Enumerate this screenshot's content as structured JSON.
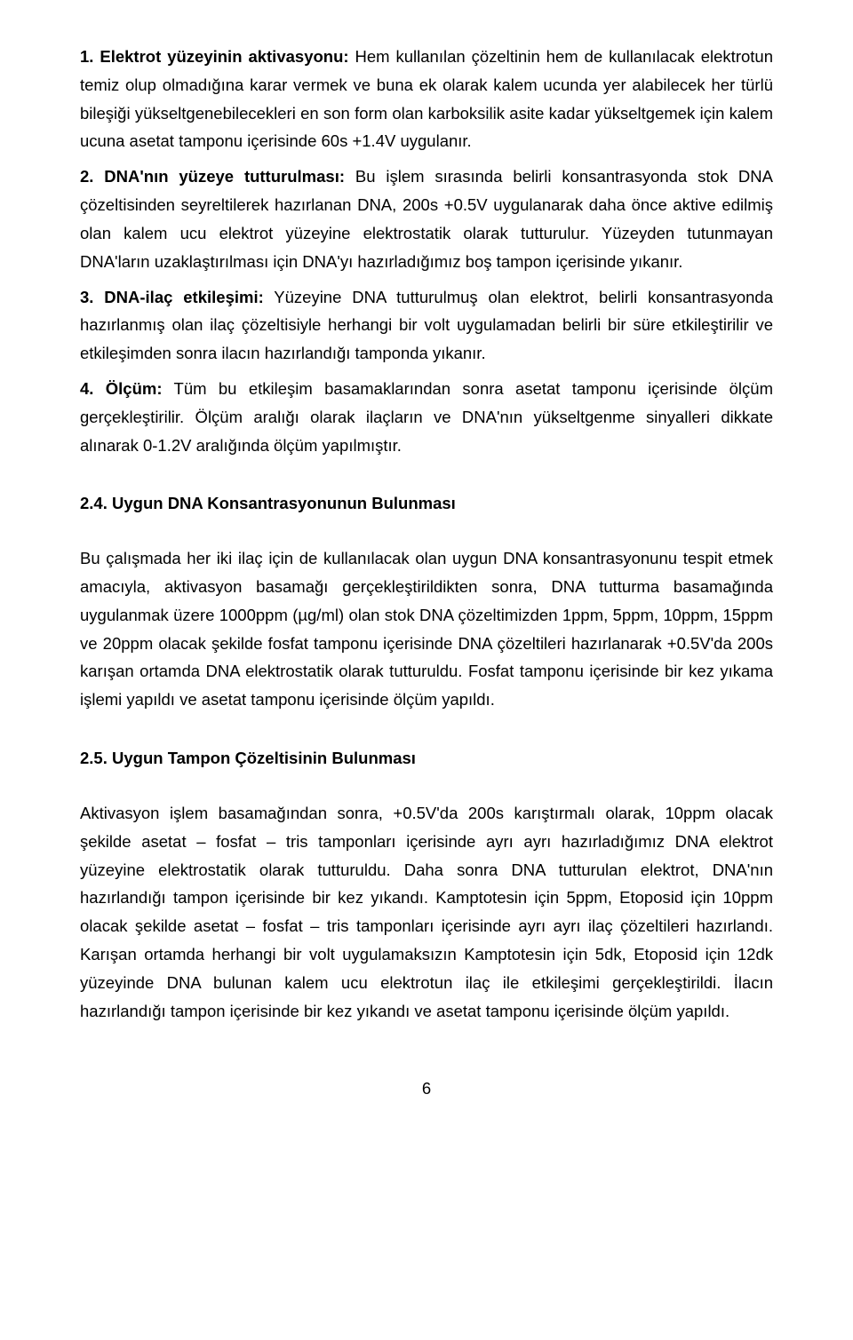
{
  "colors": {
    "text": "#000000",
    "background": "#ffffff"
  },
  "typography": {
    "font_family": "Arial",
    "body_fontsize_pt": 14,
    "line_height": 1.72,
    "heading_weight": "bold"
  },
  "paragraphs": {
    "p1": {
      "label": "1. Elektrot yüzeyinin aktivasyonu:",
      "text": " Hem kullanılan çözeltinin hem de kullanılacak elektrotun temiz olup olmadığına karar vermek ve buna ek olarak kalem ucunda yer alabilecek her türlü bileşiği yükseltgenebilecekleri en son form olan karboksilik asite kadar yükseltgemek için kalem ucuna asetat tamponu içerisinde 60s +1.4V uygulanır."
    },
    "p2": {
      "label": "2. DNA'nın yüzeye tutturulması:",
      "text": " Bu işlem sırasında belirli konsantrasyonda stok DNA çözeltisinden seyreltilerek hazırlanan DNA, 200s +0.5V uygulanarak daha önce aktive edilmiş olan kalem ucu elektrot yüzeyine elektrostatik olarak tutturulur. Yüzeyden tutunmayan DNA'ların uzaklaştırılması için DNA'yı hazırladığımız boş tampon içerisinde yıkanır."
    },
    "p3": {
      "label": "3. DNA-ilaç etkileşimi:",
      "text": " Yüzeyine DNA tutturulmuş olan elektrot, belirli konsantrasyonda hazırlanmış olan ilaç çözeltisiyle herhangi bir volt uygulamadan belirli bir süre etkileştirilir ve etkileşimden sonra ilacın hazırlandığı tamponda yıkanır."
    },
    "p4": {
      "label": "4. Ölçüm:",
      "text": " Tüm bu etkileşim basamaklarından sonra asetat tamponu içerisinde ölçüm gerçekleştirilir. Ölçüm aralığı olarak ilaçların ve DNA'nın yükseltgenme sinyalleri dikkate alınarak 0-1.2V aralığında ölçüm yapılmıştır."
    }
  },
  "sections": {
    "s24": {
      "heading": "2.4. Uygun DNA Konsantrasyonunun Bulunması",
      "body": "Bu çalışmada her iki ilaç için de kullanılacak olan uygun DNA konsantrasyonunu tespit etmek amacıyla, aktivasyon basamağı gerçekleştirildikten sonra, DNA tutturma basamağında uygulanmak üzere 1000ppm (µg/ml) olan stok DNA çözeltimizden 1ppm, 5ppm, 10ppm, 15ppm ve 20ppm olacak şekilde fosfat tamponu içerisinde DNA çözeltileri hazırlanarak +0.5V'da 200s karışan ortamda DNA elektrostatik olarak tutturuldu. Fosfat tamponu içerisinde bir kez yıkama işlemi yapıldı ve asetat tamponu içerisinde ölçüm yapıldı."
    },
    "s25": {
      "heading": "2.5. Uygun Tampon Çözeltisinin Bulunması",
      "body": "Aktivasyon işlem basamağından sonra, +0.5V'da 200s karıştırmalı olarak, 10ppm olacak şekilde asetat – fosfat – tris tamponları içerisinde ayrı ayrı hazırladığımız DNA elektrot yüzeyine elektrostatik olarak tutturuldu. Daha sonra DNA tutturulan elektrot, DNA'nın hazırlandığı tampon içerisinde bir kez yıkandı. Kamptotesin için 5ppm, Etoposid için 10ppm olacak şekilde asetat – fosfat – tris tamponları içerisinde ayrı ayrı ilaç çözeltileri hazırlandı. Karışan ortamda herhangi bir volt uygulamaksızın Kamptotesin için 5dk, Etoposid için 12dk yüzeyinde DNA bulunan kalem ucu elektrotun ilaç ile etkileşimi gerçekleştirildi. İlacın hazırlandığı tampon içerisinde bir kez yıkandı ve asetat tamponu içerisinde ölçüm yapıldı."
    }
  },
  "page_number": "6"
}
